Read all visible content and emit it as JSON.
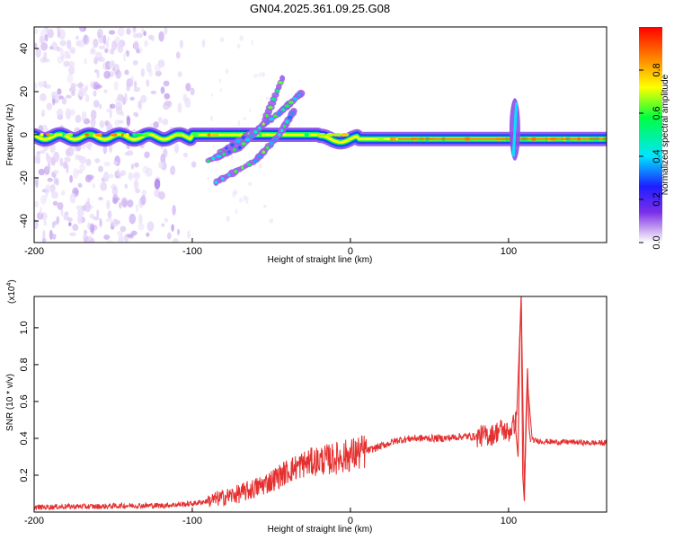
{
  "title": "GN04.2025.361.09.25.G08",
  "chart_data": [
    {
      "type": "heatmap",
      "name": "spectrogram",
      "xlabel": "Height of straight line (km)",
      "ylabel": "Frequency (Hz)",
      "xlim": [
        -200,
        162
      ],
      "ylim": [
        -50,
        50
      ],
      "x_ticks": [
        -200,
        -100,
        0,
        100
      ],
      "y_ticks": [
        -40,
        -20,
        0,
        20,
        40
      ],
      "colorbar": {
        "label": "Normalized spectral amplitude",
        "range": [
          0,
          1
        ],
        "ticks": [
          0.0,
          0.2,
          0.4,
          0.6,
          0.8
        ],
        "tick_labels": [
          "0.0",
          "0.2",
          "0.4",
          "0.6",
          "0.8"
        ],
        "colormap": [
          "#ffffff",
          "#c8a8f0",
          "#7b2fe8",
          "#1e1eff",
          "#00e5ff",
          "#00ff40",
          "#ffff00",
          "#ff8000",
          "#ff0000"
        ]
      },
      "features": {
        "main_band": {
          "frequency": 0,
          "x_range": [
            -200,
            162
          ]
        },
        "scatter_region": {
          "x_range": [
            -200,
            -90
          ],
          "frequency_range": [
            -50,
            50
          ]
        },
        "diagonal_tracks": [
          {
            "x": [
              -85,
              -60,
              -45,
              -35
            ],
            "y": [
              -22,
              -12,
              0,
              12
            ]
          },
          {
            "x": [
              -82,
              -60,
              -45,
              -30
            ],
            "y": [
              -8,
              2,
              10,
              20
            ]
          },
          {
            "x": [
              -90,
              -70,
              -55,
              -42
            ],
            "y": [
              -12,
              -6,
              5,
              28
            ]
          }
        ],
        "spike": {
          "x": 104,
          "frequency_range": [
            -12,
            17
          ]
        }
      }
    },
    {
      "type": "line",
      "name": "snr",
      "xlabel": "Height of straight line (km)",
      "ylabel": "SNR (10 * v/v)",
      "y_multiplier": "(x10",
      "y_multiplier_exp": "4",
      "y_multiplier_close": ")",
      "xlim": [
        -200,
        162
      ],
      "ylim": [
        0,
        1.17
      ],
      "x_ticks": [
        -200,
        -100,
        0,
        100
      ],
      "y_ticks": [
        0.2,
        0.4,
        0.6,
        0.8,
        1.0
      ],
      "y_tick_labels": [
        "0.2",
        "0.4",
        "0.6",
        "0.8",
        "1.0"
      ],
      "series": [
        {
          "color": "#e53030",
          "x": [
            -200,
            -180,
            -160,
            -140,
            -120,
            -100,
            -90,
            -80,
            -70,
            -60,
            -50,
            -40,
            -30,
            -20,
            -10,
            0,
            10,
            20,
            30,
            40,
            50,
            60,
            70,
            80,
            90,
            95,
            100,
            105,
            108,
            110,
            112,
            115,
            120,
            130,
            140,
            150,
            162
          ],
          "y": [
            0.025,
            0.03,
            0.03,
            0.035,
            0.035,
            0.045,
            0.06,
            0.08,
            0.1,
            0.13,
            0.17,
            0.22,
            0.26,
            0.28,
            0.29,
            0.31,
            0.33,
            0.36,
            0.39,
            0.4,
            0.4,
            0.4,
            0.41,
            0.41,
            0.42,
            0.45,
            0.43,
            0.5,
            1.17,
            0.12,
            0.7,
            0.39,
            0.385,
            0.38,
            0.38,
            0.375,
            0.375
          ]
        }
      ]
    }
  ]
}
